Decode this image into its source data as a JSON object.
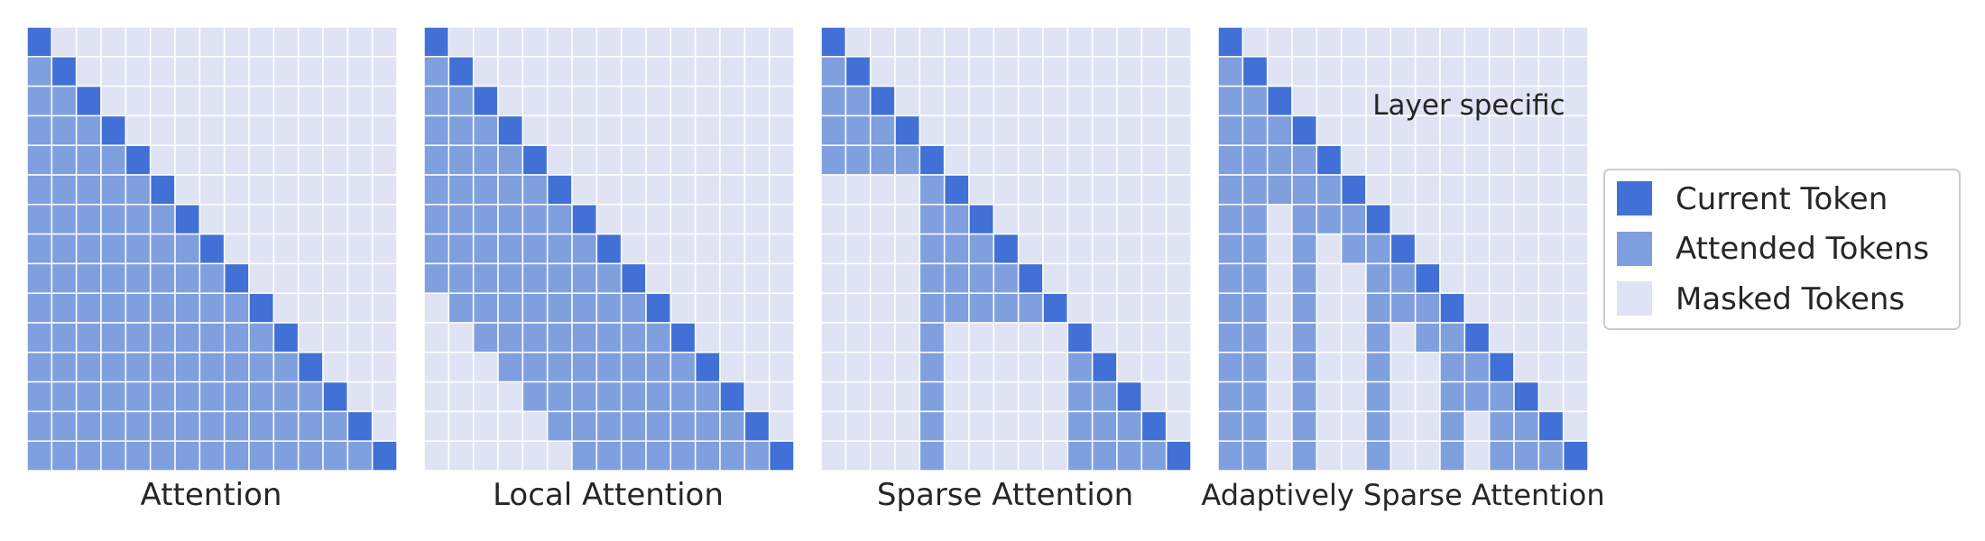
{
  "colors": {
    "current": "#4171d6",
    "attended": "#7f9fdf",
    "masked": "#dfe3f3",
    "gridline": "#ffffff",
    "legend_border": "#cccccc"
  },
  "grid_size": 15,
  "panels": [
    {
      "title": "Attention",
      "rule": "full",
      "annotation": ""
    },
    {
      "title": "Local Attention",
      "rule": "local",
      "window": 8,
      "annotation": ""
    },
    {
      "title": "Sparse Attention",
      "rule": "sparse",
      "annotation": ""
    },
    {
      "title": "Adaptively Sparse Attention",
      "rule": "adaptive",
      "annotation": "Layer specific"
    }
  ],
  "legend": {
    "items": [
      {
        "label": "Current Token",
        "color_key": "current"
      },
      {
        "label": "Attended Tokens",
        "color_key": "attended"
      },
      {
        "label": "Masked Tokens",
        "color_key": "masked"
      }
    ]
  }
}
